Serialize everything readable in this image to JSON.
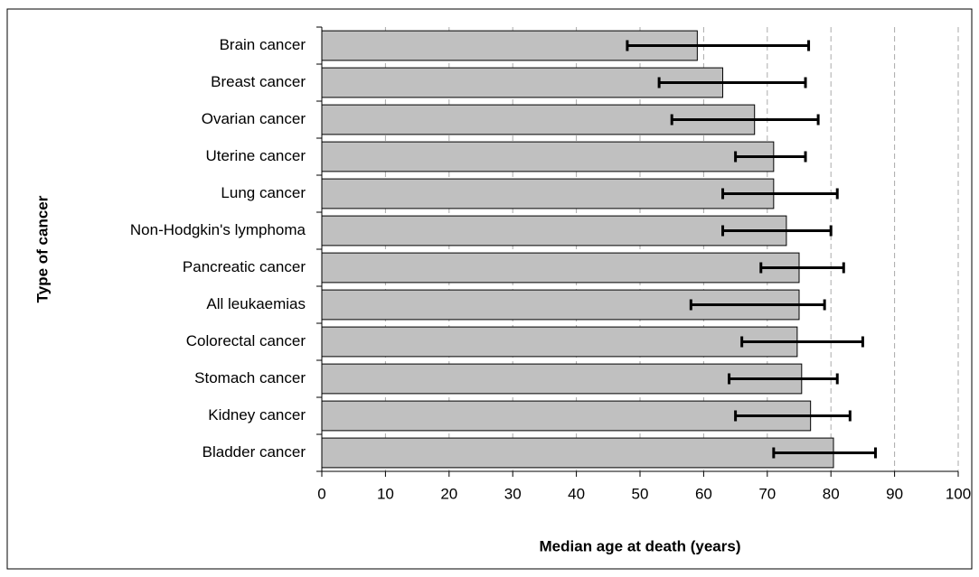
{
  "chart_data": {
    "type": "bar",
    "orientation": "horizontal",
    "categories": [
      "Brain cancer",
      "Breast cancer",
      "Ovarian cancer",
      "Uterine cancer",
      "Lung cancer",
      "Non-Hodgkin's lymphoma",
      "Pancreatic cancer",
      "All leukaemias",
      "Colorectal cancer",
      "Stomach cancer",
      "Kidney cancer",
      "Bladder cancer"
    ],
    "values": [
      59,
      63,
      68,
      71,
      71,
      73,
      75,
      75,
      74.7,
      75.4,
      76.8,
      80.4
    ],
    "low": [
      48,
      53,
      55,
      65,
      63,
      63,
      69,
      58,
      66,
      64,
      65,
      71
    ],
    "high": [
      76.5,
      76,
      78,
      76,
      81,
      80,
      82,
      79,
      85,
      81,
      83,
      87
    ],
    "color": "#c0c0c0",
    "xlabel": "Median age at death (years)",
    "ylabel": "Type of cancer",
    "xlim": [
      0,
      100
    ],
    "xticks": [
      0,
      10,
      20,
      30,
      40,
      50,
      60,
      70,
      80,
      90,
      100
    ],
    "grid": true
  }
}
